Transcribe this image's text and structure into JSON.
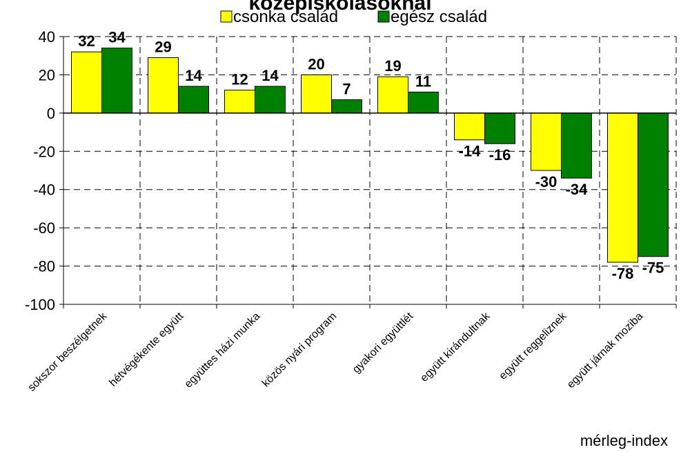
{
  "chart_data": {
    "type": "bar",
    "title": "középiskolásoknál",
    "xlabel": "",
    "ylabel": "",
    "unit_label": "mérleg-index",
    "categories": [
      "sokszor beszélgetnek",
      "hétvégékente együtt",
      "együttes házi munka",
      "közös nyári program",
      "gyakori együttlét",
      "együtt kirándultnak",
      "együtt reggeliznek",
      "együtt járnak moziba"
    ],
    "series": [
      {
        "name": "csonka család",
        "color": "#ffff00",
        "values": [
          32,
          29,
          12,
          20,
          19,
          -14,
          -30,
          -78
        ]
      },
      {
        "name": "egész család",
        "color": "#008000",
        "values": [
          34,
          14,
          14,
          7,
          11,
          -16,
          -34,
          -75
        ]
      }
    ],
    "ylim": [
      -100,
      40
    ],
    "yticks": [
      40,
      20,
      0,
      -20,
      -40,
      -60,
      -80,
      -100
    ],
    "grid": true,
    "legend_position": "top"
  }
}
